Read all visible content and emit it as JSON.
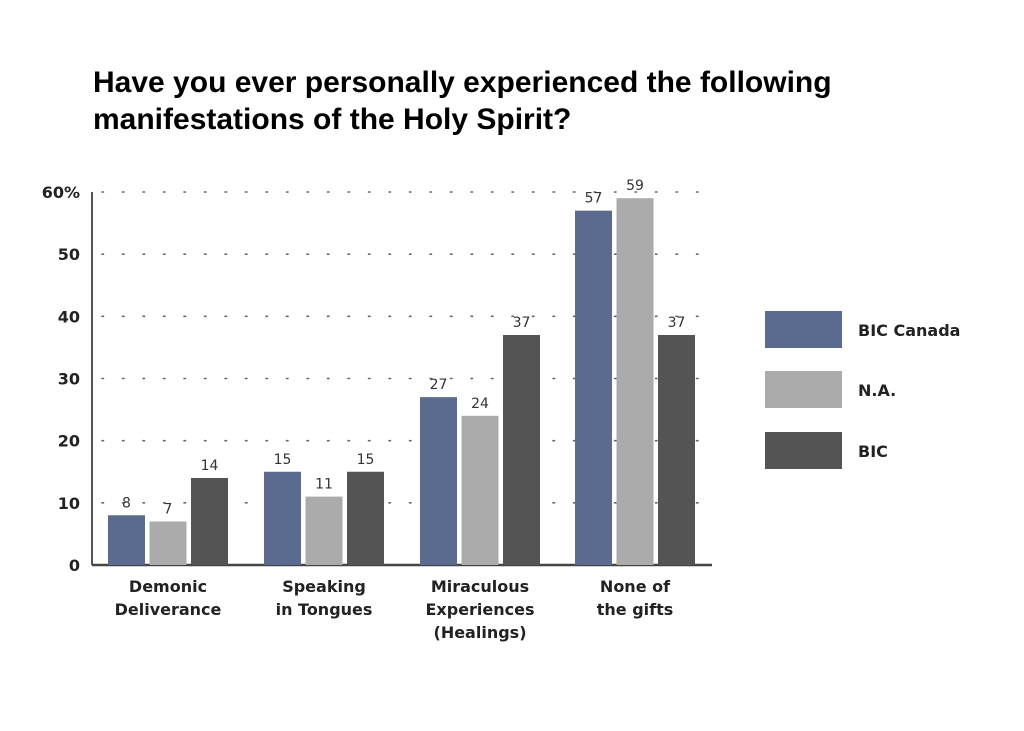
{
  "chart_data": {
    "type": "bar",
    "title_lines": [
      "Have you ever personally experienced the following",
      "manifestations of the Holy Spirit?"
    ],
    "categories": [
      [
        "Demonic",
        "Deliverance"
      ],
      [
        "Speaking",
        "in Tongues"
      ],
      [
        "Miraculous",
        "Experiences",
        "(Healings)"
      ],
      [
        "None of",
        "the gifts"
      ]
    ],
    "series": [
      {
        "name": "BIC Canada",
        "color": "#5b6a8f",
        "values": [
          8,
          15,
          27,
          57
        ]
      },
      {
        "name": "N.A.",
        "color": "#ababab",
        "values": [
          7,
          11,
          24,
          59
        ]
      },
      {
        "name": "BIC",
        "color": "#545454",
        "values": [
          14,
          15,
          37,
          37
        ]
      }
    ],
    "yticks": [
      "0",
      "10",
      "20",
      "30",
      "40",
      "50",
      "60%"
    ],
    "ylim": [
      0,
      60
    ],
    "grid": "dotted",
    "legend_position": "right"
  }
}
